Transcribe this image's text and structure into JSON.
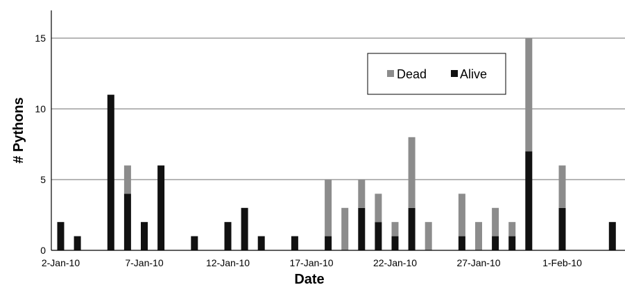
{
  "chart_data": {
    "type": "bar",
    "stacked": true,
    "title": "",
    "xlabel": "Date",
    "ylabel": "# Pythons",
    "ylim": [
      0,
      15
    ],
    "y_ticks": [
      0,
      5,
      10,
      15
    ],
    "x_tick_labels": [
      "2-Jan-10",
      "7-Jan-10",
      "12-Jan-10",
      "17-Jan-10",
      "22-Jan-10",
      "27-Jan-10",
      "1-Feb-10"
    ],
    "grid": true,
    "legend_position": "top-right",
    "categories": [
      "2-Jan-10",
      "3-Jan-10",
      "4-Jan-10",
      "5-Jan-10",
      "6-Jan-10",
      "7-Jan-10",
      "8-Jan-10",
      "9-Jan-10",
      "10-Jan-10",
      "11-Jan-10",
      "12-Jan-10",
      "13-Jan-10",
      "14-Jan-10",
      "15-Jan-10",
      "16-Jan-10",
      "17-Jan-10",
      "18-Jan-10",
      "19-Jan-10",
      "20-Jan-10",
      "21-Jan-10",
      "22-Jan-10",
      "23-Jan-10",
      "24-Jan-10",
      "25-Jan-10",
      "26-Jan-10",
      "27-Jan-10",
      "28-Jan-10",
      "29-Jan-10",
      "30-Jan-10",
      "31-Jan-10",
      "1-Feb-10",
      "2-Feb-10",
      "3-Feb-10",
      "4-Feb-10"
    ],
    "series": [
      {
        "name": "Alive",
        "color": "#111111",
        "values": [
          2,
          1,
          0,
          11,
          4,
          2,
          6,
          0,
          1,
          0,
          2,
          3,
          1,
          0,
          1,
          0,
          1,
          0,
          3,
          2,
          1,
          3,
          0,
          0,
          1,
          0,
          1,
          1,
          7,
          0,
          3,
          0,
          0,
          2
        ]
      },
      {
        "name": "Dead",
        "color": "#8c8c8c",
        "values": [
          0,
          0,
          0,
          0,
          2,
          0,
          0,
          0,
          0,
          0,
          0,
          0,
          0,
          0,
          0,
          0,
          4,
          3,
          2,
          2,
          1,
          5,
          2,
          0,
          3,
          2,
          2,
          1,
          8,
          0,
          3,
          0,
          0,
          0
        ]
      }
    ]
  }
}
